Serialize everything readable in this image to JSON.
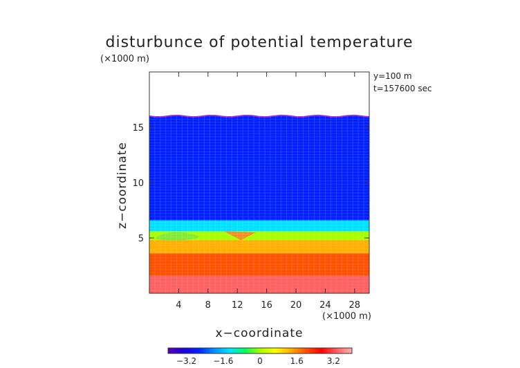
{
  "chart_data": {
    "type": "heatmap",
    "title": "disturbunce of potential temperature",
    "yunit": "(×1000 m)",
    "xunit": "(×1000 m)",
    "xlabel": "x−coordinate",
    "ylabel": "z−coordinate",
    "annotations": [
      "y=100 m",
      "t=157600 sec"
    ],
    "xlim": [
      0,
      30
    ],
    "ylim": [
      0,
      20
    ],
    "xticks": [
      4,
      8,
      12,
      16,
      20,
      24,
      28
    ],
    "xtick_labels": [
      "4",
      "8",
      "12",
      "16",
      "20",
      "24",
      "28"
    ],
    "yticks": [
      5,
      10,
      15
    ],
    "ytick_labels": [
      "5",
      "10",
      "15"
    ],
    "colorbar": {
      "range": [
        -4,
        4
      ],
      "ticks": [
        -3.2,
        -1.6,
        0,
        1.6,
        3.2
      ],
      "tick_labels": [
        "−3.2",
        "−1.6",
        "0",
        "1.6",
        "3.2"
      ],
      "palette": [
        "#5a00a8",
        "#1c00e0",
        "#0020ff",
        "#0090ff",
        "#00e0ff",
        "#00ff60",
        "#a8ff00",
        "#ffff00",
        "#ffb000",
        "#ff5000",
        "#ff0000",
        "#ff6060",
        "#ffb0b0"
      ]
    },
    "field": {
      "data_top_z": 16.0,
      "zones": [
        {
          "z_from": 6.6,
          "z_to": 16.0,
          "value": -3.0
        },
        {
          "z_from": 5.6,
          "z_to": 6.6,
          "value": -1.6
        },
        {
          "z_from": 4.8,
          "z_to": 5.6,
          "value": 0.0
        },
        {
          "z_from": 3.6,
          "z_to": 4.8,
          "value": 1.2
        },
        {
          "z_from": 1.6,
          "z_to": 3.6,
          "value": 2.0
        },
        {
          "z_from": 0.0,
          "z_to": 1.6,
          "value": 3.2
        }
      ]
    }
  }
}
